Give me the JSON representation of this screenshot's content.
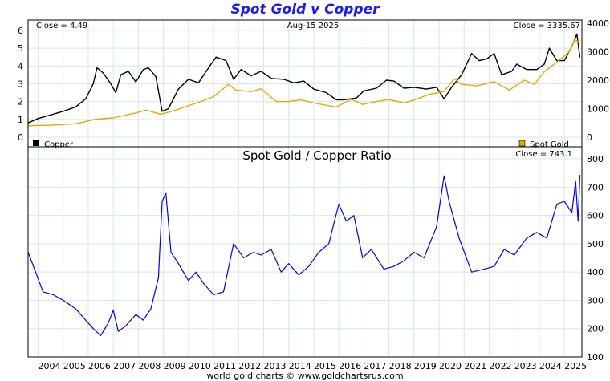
{
  "title": "Spot Gold v Copper",
  "footer": "world gold charts © www.goldchartsrus.com",
  "colors": {
    "title": "#1a1aff",
    "copper": "#000000",
    "gold": "#e6a800",
    "ratio": "#0000ee",
    "grid": "#d8e4f0"
  },
  "chart_data": [
    {
      "type": "line",
      "title": "Spot Gold v Copper",
      "date_label": "Aug-15  2025",
      "left_note": "Close = 4.49",
      "right_note": "Close = 3335.67",
      "x_ticks": [
        "2004",
        "2005",
        "2006",
        "2007",
        "2008",
        "2009",
        "2010",
        "2011",
        "2012",
        "2013",
        "2014",
        "2015",
        "2016",
        "2017",
        "2018",
        "2019",
        "2020",
        "2021",
        "2022",
        "2023",
        "2024",
        "2025"
      ],
      "xlim": [
        2003.6,
        2025.7
      ],
      "y_left": {
        "ticks": [
          "0",
          "1",
          "2",
          "3",
          "4",
          "5",
          "6"
        ],
        "lim": [
          0,
          6.4
        ]
      },
      "y_right": {
        "ticks": [
          "0",
          "1000",
          "2000",
          "3000",
          "4000"
        ],
        "lim": [
          0,
          4000
        ]
      },
      "series": [
        {
          "name": "Copper",
          "axis": "left",
          "color": "#000000",
          "points": [
            [
              2003.6,
              0.8
            ],
            [
              2004.0,
              1.05
            ],
            [
              2004.5,
              1.25
            ],
            [
              2005.0,
              1.45
            ],
            [
              2005.5,
              1.7
            ],
            [
              2005.9,
              2.15
            ],
            [
              2006.2,
              3.0
            ],
            [
              2006.35,
              3.9
            ],
            [
              2006.6,
              3.6
            ],
            [
              2006.9,
              3.0
            ],
            [
              2007.1,
              2.5
            ],
            [
              2007.3,
              3.5
            ],
            [
              2007.6,
              3.7
            ],
            [
              2007.9,
              3.1
            ],
            [
              2008.2,
              3.8
            ],
            [
              2008.4,
              3.9
            ],
            [
              2008.7,
              3.4
            ],
            [
              2008.95,
              1.45
            ],
            [
              2009.2,
              1.6
            ],
            [
              2009.6,
              2.7
            ],
            [
              2010.0,
              3.25
            ],
            [
              2010.4,
              3.05
            ],
            [
              2010.9,
              4.1
            ],
            [
              2011.1,
              4.5
            ],
            [
              2011.5,
              4.3
            ],
            [
              2011.8,
              3.25
            ],
            [
              2012.1,
              3.8
            ],
            [
              2012.5,
              3.45
            ],
            [
              2012.9,
              3.7
            ],
            [
              2013.3,
              3.3
            ],
            [
              2013.8,
              3.25
            ],
            [
              2014.2,
              3.05
            ],
            [
              2014.6,
              3.15
            ],
            [
              2015.0,
              2.7
            ],
            [
              2015.5,
              2.5
            ],
            [
              2015.9,
              2.1
            ],
            [
              2016.2,
              2.1
            ],
            [
              2016.7,
              2.2
            ],
            [
              2017.0,
              2.6
            ],
            [
              2017.5,
              2.75
            ],
            [
              2017.9,
              3.2
            ],
            [
              2018.2,
              3.15
            ],
            [
              2018.6,
              2.75
            ],
            [
              2019.0,
              2.8
            ],
            [
              2019.5,
              2.7
            ],
            [
              2019.9,
              2.8
            ],
            [
              2020.2,
              2.15
            ],
            [
              2020.5,
              2.8
            ],
            [
              2020.9,
              3.5
            ],
            [
              2021.3,
              4.7
            ],
            [
              2021.6,
              4.3
            ],
            [
              2021.9,
              4.4
            ],
            [
              2022.2,
              4.7
            ],
            [
              2022.5,
              3.5
            ],
            [
              2022.9,
              3.7
            ],
            [
              2023.1,
              4.1
            ],
            [
              2023.5,
              3.8
            ],
            [
              2023.9,
              3.8
            ],
            [
              2024.2,
              4.1
            ],
            [
              2024.4,
              5.0
            ],
            [
              2024.7,
              4.3
            ],
            [
              2025.0,
              4.3
            ],
            [
              2025.3,
              5.1
            ],
            [
              2025.5,
              5.8
            ],
            [
              2025.62,
              4.49
            ]
          ]
        },
        {
          "name": "Spot Gold",
          "axis": "right",
          "color": "#e6a800",
          "points": [
            [
              2003.6,
              400
            ],
            [
              2004.5,
              420
            ],
            [
              2005.5,
              470
            ],
            [
              2006.3,
              630
            ],
            [
              2007.0,
              680
            ],
            [
              2007.9,
              850
            ],
            [
              2008.3,
              950
            ],
            [
              2008.9,
              800
            ],
            [
              2009.5,
              950
            ],
            [
              2010.0,
              1100
            ],
            [
              2010.5,
              1250
            ],
            [
              2011.0,
              1420
            ],
            [
              2011.6,
              1850
            ],
            [
              2011.9,
              1650
            ],
            [
              2012.5,
              1600
            ],
            [
              2012.9,
              1700
            ],
            [
              2013.3,
              1400
            ],
            [
              2013.5,
              1250
            ],
            [
              2014.0,
              1250
            ],
            [
              2014.5,
              1310
            ],
            [
              2015.0,
              1200
            ],
            [
              2015.9,
              1060
            ],
            [
              2016.5,
              1330
            ],
            [
              2016.95,
              1150
            ],
            [
              2017.5,
              1250
            ],
            [
              2018.0,
              1320
            ],
            [
              2018.6,
              1200
            ],
            [
              2019.0,
              1300
            ],
            [
              2019.6,
              1500
            ],
            [
              2020.2,
              1600
            ],
            [
              2020.6,
              2050
            ],
            [
              2020.9,
              1850
            ],
            [
              2021.5,
              1800
            ],
            [
              2022.2,
              1950
            ],
            [
              2022.8,
              1650
            ],
            [
              2023.4,
              2000
            ],
            [
              2023.8,
              1850
            ],
            [
              2024.2,
              2300
            ],
            [
              2024.8,
              2700
            ],
            [
              2025.2,
              3000
            ],
            [
              2025.4,
              3400
            ],
            [
              2025.62,
              3335.67
            ]
          ]
        }
      ],
      "legend": [
        {
          "label": "Copper",
          "color": "#000000"
        },
        {
          "label": "Spot Gold",
          "color": "#e6a800"
        }
      ]
    },
    {
      "type": "line",
      "title": "Spot Gold  /  Copper Ratio",
      "right_note": "Close = 743.1",
      "x_ticks": [
        "2004",
        "2005",
        "2006",
        "2007",
        "2008",
        "2009",
        "2010",
        "2011",
        "2012",
        "2013",
        "2014",
        "2015",
        "2016",
        "2017",
        "2018",
        "2019",
        "2020",
        "2021",
        "2022",
        "2023",
        "2024",
        "2025"
      ],
      "xlim": [
        2003.6,
        2025.7
      ],
      "y_right": {
        "ticks": [
          "100",
          "200",
          "300",
          "400",
          "500",
          "600",
          "700",
          "800"
        ],
        "lim": [
          100,
          820
        ]
      },
      "series": [
        {
          "name": "Spot Gold / Copper Ratio",
          "color": "#0000ee",
          "points": [
            [
              2003.6,
              470
            ],
            [
              2003.9,
              400
            ],
            [
              2004.2,
              330
            ],
            [
              2004.6,
              320
            ],
            [
              2005.0,
              300
            ],
            [
              2005.5,
              270
            ],
            [
              2005.9,
              230
            ],
            [
              2006.2,
              200
            ],
            [
              2006.5,
              175
            ],
            [
              2006.8,
              220
            ],
            [
              2007.0,
              265
            ],
            [
              2007.2,
              190
            ],
            [
              2007.5,
              210
            ],
            [
              2007.9,
              250
            ],
            [
              2008.2,
              230
            ],
            [
              2008.5,
              270
            ],
            [
              2008.8,
              380
            ],
            [
              2008.95,
              650
            ],
            [
              2009.1,
              680
            ],
            [
              2009.3,
              470
            ],
            [
              2009.6,
              430
            ],
            [
              2010.0,
              370
            ],
            [
              2010.3,
              400
            ],
            [
              2010.6,
              360
            ],
            [
              2011.0,
              320
            ],
            [
              2011.4,
              330
            ],
            [
              2011.8,
              500
            ],
            [
              2012.2,
              450
            ],
            [
              2012.6,
              470
            ],
            [
              2012.9,
              460
            ],
            [
              2013.3,
              480
            ],
            [
              2013.7,
              400
            ],
            [
              2014.0,
              430
            ],
            [
              2014.4,
              390
            ],
            [
              2014.8,
              420
            ],
            [
              2015.2,
              470
            ],
            [
              2015.6,
              500
            ],
            [
              2016.0,
              640
            ],
            [
              2016.3,
              580
            ],
            [
              2016.6,
              600
            ],
            [
              2016.95,
              450
            ],
            [
              2017.3,
              480
            ],
            [
              2017.8,
              410
            ],
            [
              2018.2,
              420
            ],
            [
              2018.6,
              440
            ],
            [
              2019.0,
              470
            ],
            [
              2019.4,
              450
            ],
            [
              2019.9,
              560
            ],
            [
              2020.2,
              740
            ],
            [
              2020.4,
              650
            ],
            [
              2020.8,
              520
            ],
            [
              2021.3,
              400
            ],
            [
              2021.8,
              410
            ],
            [
              2022.2,
              420
            ],
            [
              2022.6,
              480
            ],
            [
              2023.0,
              460
            ],
            [
              2023.5,
              520
            ],
            [
              2023.9,
              540
            ],
            [
              2024.3,
              520
            ],
            [
              2024.7,
              640
            ],
            [
              2025.0,
              650
            ],
            [
              2025.3,
              610
            ],
            [
              2025.45,
              720
            ],
            [
              2025.55,
              580
            ],
            [
              2025.62,
              743.1
            ]
          ]
        }
      ]
    }
  ]
}
